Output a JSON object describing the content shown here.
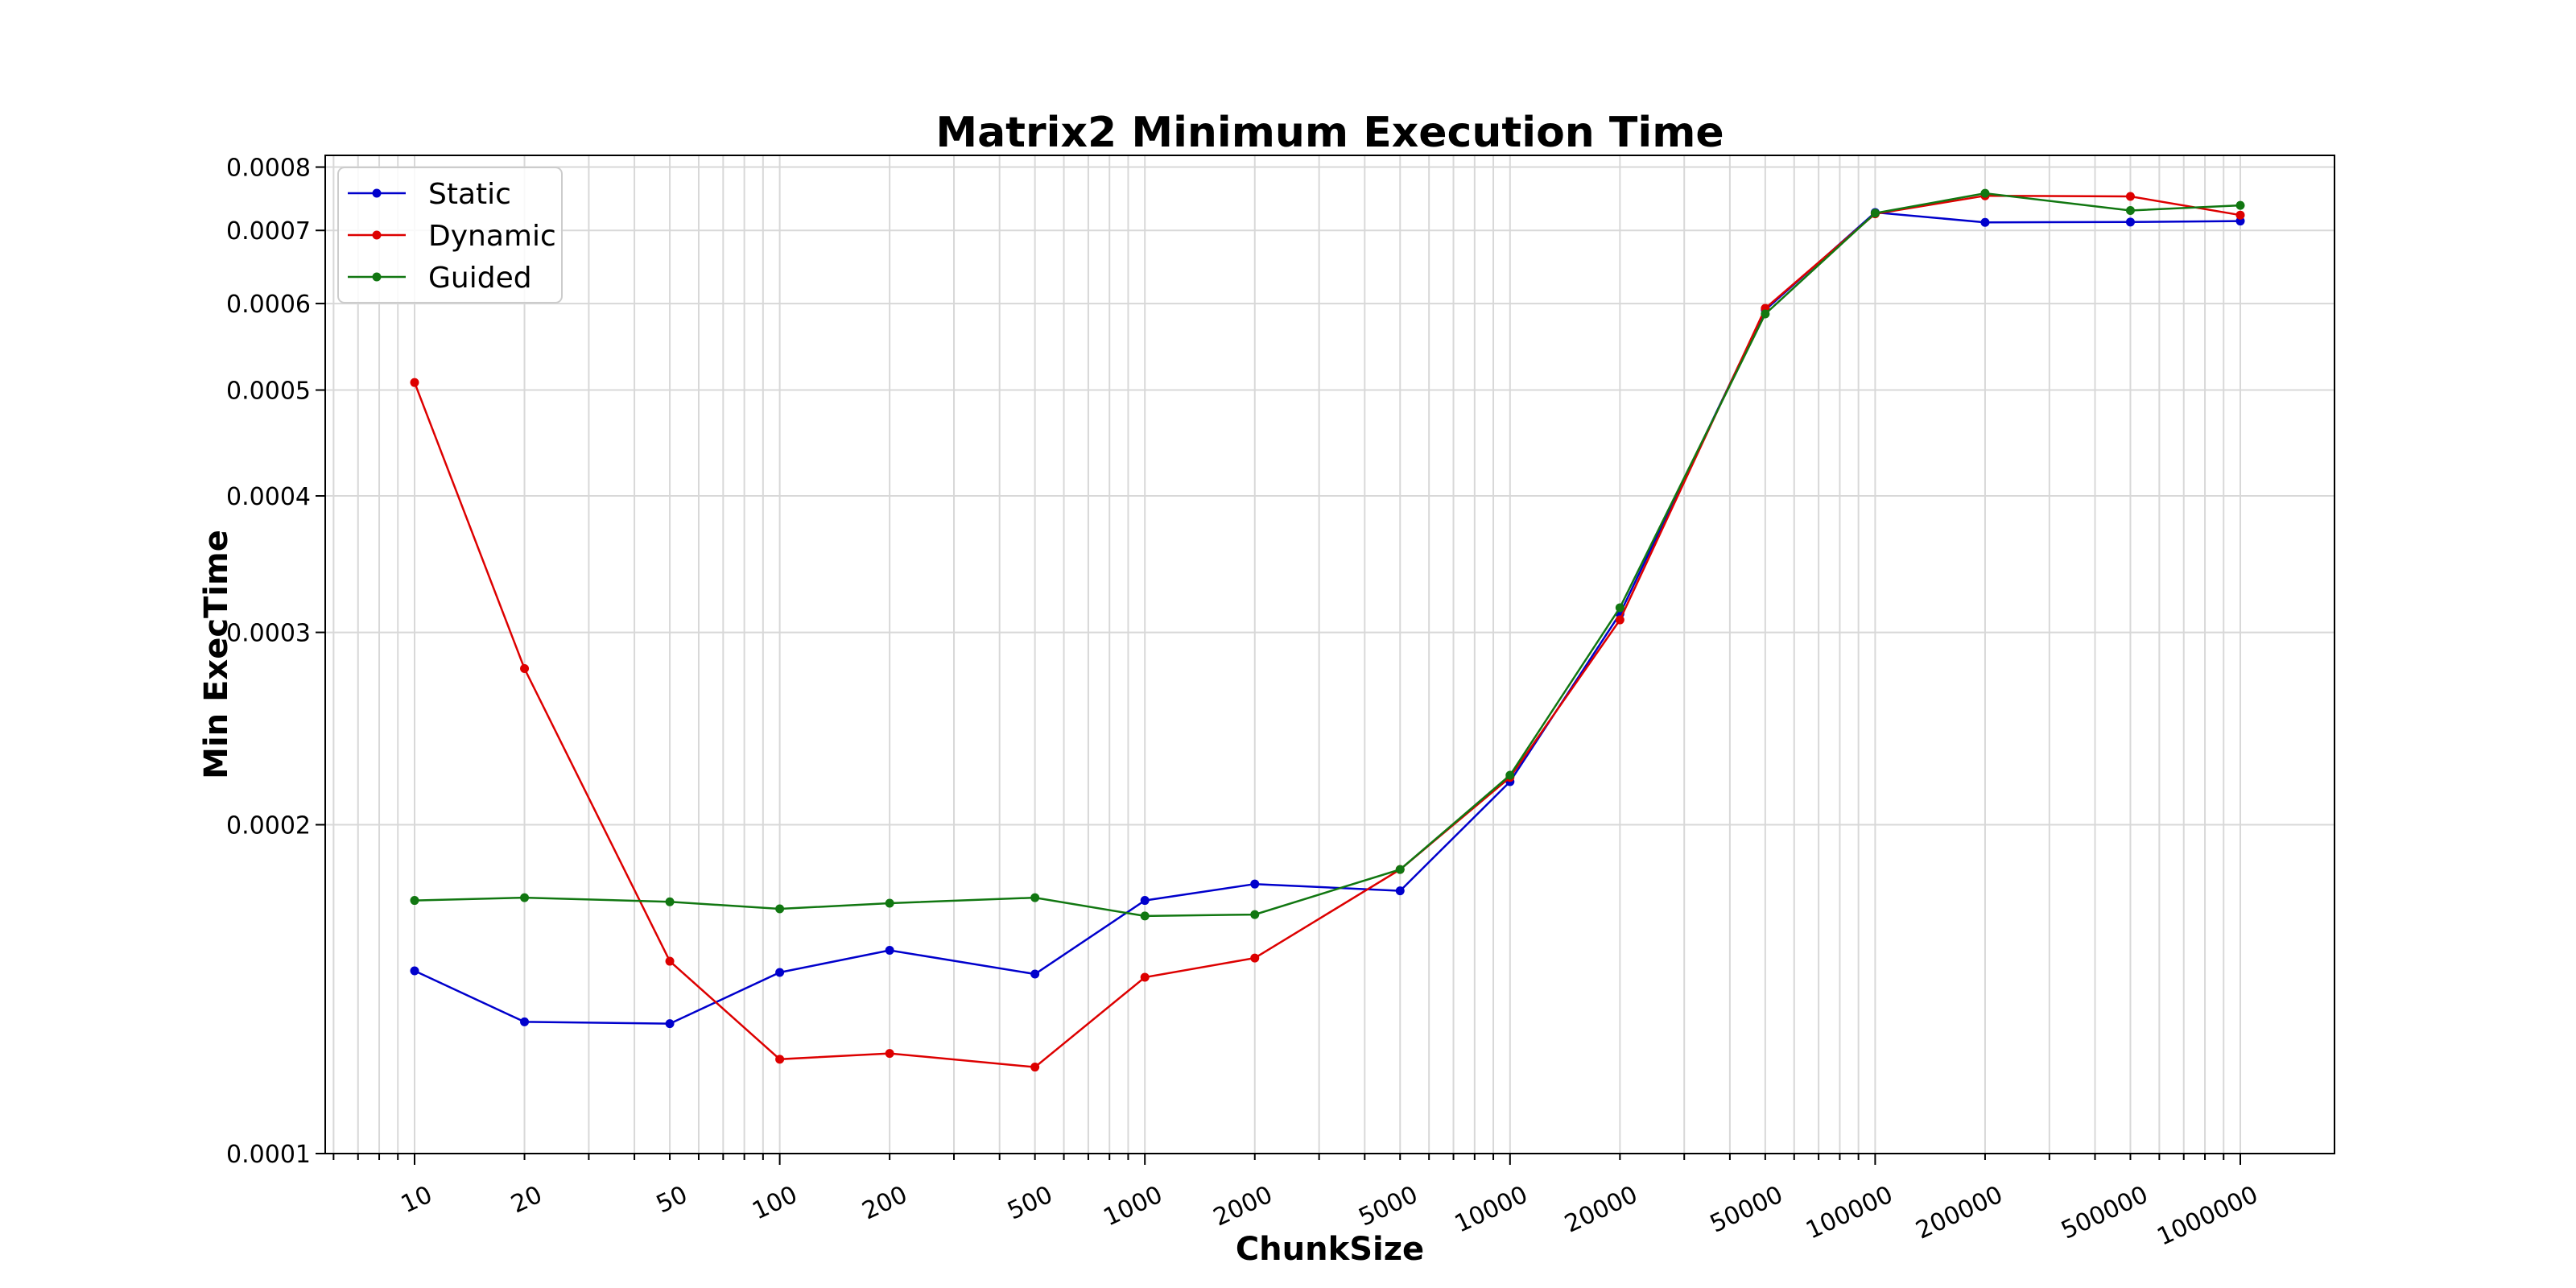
{
  "chart_data": {
    "type": "line",
    "title": "Matrix2 Minimum Execution Time",
    "xlabel": "ChunkSize",
    "ylabel": "Min ExecTime",
    "x_scale": "log",
    "y_scale": "log",
    "x": [
      10,
      20,
      50,
      100,
      200,
      500,
      1000,
      2000,
      5000,
      10000,
      20000,
      50000,
      100000,
      200000,
      500000,
      1000000
    ],
    "x_tick_labels": [
      "10",
      "20",
      "50",
      "100",
      "200",
      "500",
      "1000",
      "2000",
      "5000",
      "10000",
      "20000",
      "50000",
      "100000",
      "200000",
      "500000",
      "1000000"
    ],
    "y_tick_labels": [
      "0.0001",
      "0.0002",
      "0.0003",
      "0.0004",
      "0.0005",
      "0.0006",
      "0.0007",
      "0.0008"
    ],
    "y_tick_values": [
      0.0001,
      0.0002,
      0.0003,
      0.0004,
      0.0005,
      0.0006,
      0.0007,
      0.0008
    ],
    "ylim": [
      0.0001,
      0.00082
    ],
    "grid": true,
    "legend_position": "top-left",
    "series": [
      {
        "name": "Static",
        "color": "#0000cc",
        "values": [
          0.000147,
          0.000132,
          0.0001315,
          0.0001465,
          0.0001535,
          0.000146,
          0.0001705,
          0.0001765,
          0.000174,
          0.000219,
          0.000312,
          0.000592,
          0.000727,
          0.000712,
          0.0007125,
          0.000714
        ]
      },
      {
        "name": "Dynamic",
        "color": "#dd0000",
        "values": [
          0.000508,
          0.000278,
          0.00015,
          0.000122,
          0.0001235,
          0.00012,
          0.000145,
          0.000151,
          0.000182,
          0.000221,
          0.000308,
          0.000594,
          0.000725,
          0.000753,
          0.000752,
          0.000723
        ]
      },
      {
        "name": "Guided",
        "color": "#117711",
        "values": [
          0.0001705,
          0.0001715,
          0.00017,
          0.0001675,
          0.0001695,
          0.0001715,
          0.000165,
          0.0001655,
          0.000182,
          0.000222,
          0.000316,
          0.000587,
          0.000726,
          0.000757,
          0.00073,
          0.000738
        ]
      }
    ]
  }
}
